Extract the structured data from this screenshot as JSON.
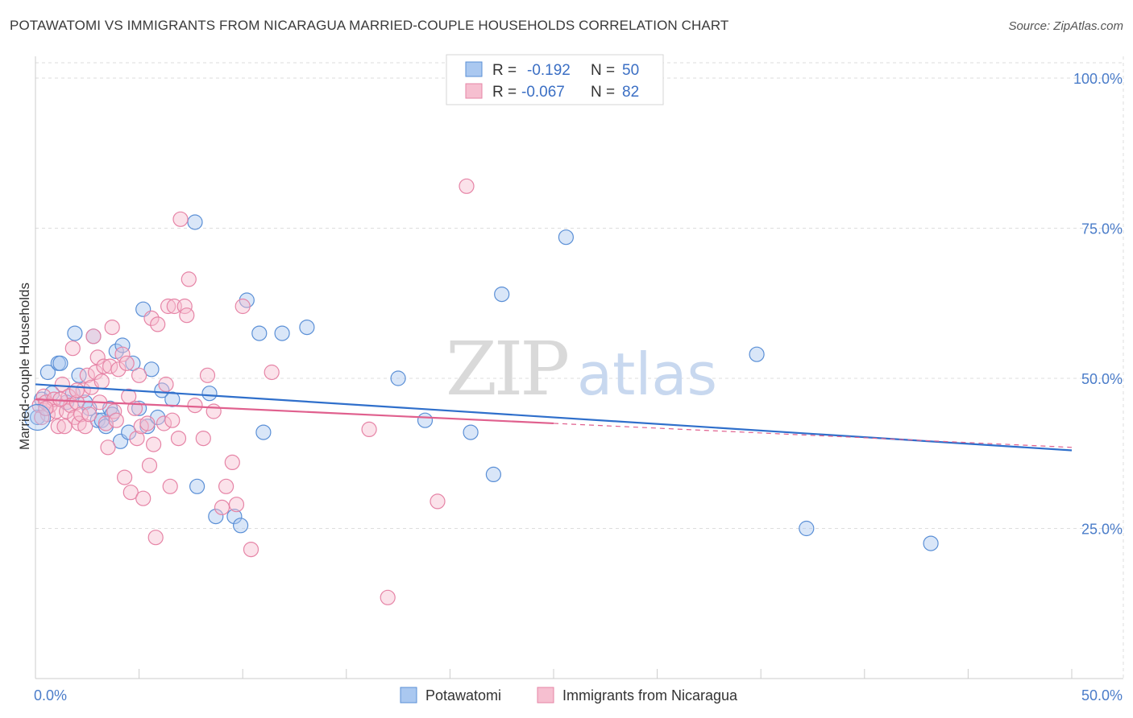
{
  "title": "POTAWATOMI VS IMMIGRANTS FROM NICARAGUA MARRIED-COUPLE HOUSEHOLDS CORRELATION CHART",
  "source": "Source: ZipAtlas.com",
  "watermark": {
    "zip": "ZIP",
    "atlas": "atlas"
  },
  "colors": {
    "blue_fill": "#aac8f0",
    "blue_stroke": "#5a8fd6",
    "blue_line": "#2f6fcb",
    "pink_fill": "#f6bfd0",
    "pink_stroke": "#e684a6",
    "pink_line": "#e0608e",
    "grid": "#dddddd",
    "tick_text": "#4a7cc9"
  },
  "legend": {
    "rows": [
      {
        "r_label": "R =",
        "r_value": "-0.192",
        "n_label": "N =",
        "n_value": "50",
        "series": "blue"
      },
      {
        "r_label": "R =",
        "r_value": "-0.067",
        "n_label": "N =",
        "n_value": "82",
        "series": "pink"
      }
    ]
  },
  "chart_data": {
    "type": "scatter",
    "xlabel": "",
    "ylabel": "Married-couple Households",
    "xlim": [
      0,
      50
    ],
    "ylim": [
      0,
      105
    ],
    "x_tick_labels": [
      "0.0%",
      "50.0%"
    ],
    "y_ticks": [
      25,
      50,
      75,
      100
    ],
    "y_tick_labels": [
      "25.0%",
      "50.0%",
      "75.0%",
      "100.0%"
    ],
    "grid": true,
    "legend_position": "top-center",
    "series": [
      {
        "name": "Potawatomi",
        "color": "blue",
        "trend": {
          "x": [
            0,
            50
          ],
          "y": [
            49.0,
            38.0
          ],
          "dashed_from": null
        },
        "points": [
          [
            0.1,
            43.5
          ],
          [
            0.6,
            51.0
          ],
          [
            1.1,
            52.5
          ],
          [
            1.2,
            52.5
          ],
          [
            1.8,
            47.5
          ],
          [
            1.9,
            57.5
          ],
          [
            2.1,
            50.5
          ],
          [
            2.4,
            46.0
          ],
          [
            2.8,
            57.0
          ],
          [
            3.0,
            43.0
          ],
          [
            3.2,
            43.0
          ],
          [
            3.4,
            42.0
          ],
          [
            3.6,
            45.0
          ],
          [
            3.9,
            54.5
          ],
          [
            4.2,
            55.5
          ],
          [
            4.1,
            39.5
          ],
          [
            4.5,
            41.0
          ],
          [
            4.7,
            52.5
          ],
          [
            5.0,
            45.0
          ],
          [
            5.2,
            61.5
          ],
          [
            5.4,
            42.0
          ],
          [
            5.6,
            51.5
          ],
          [
            5.9,
            43.5
          ],
          [
            6.1,
            48.0
          ],
          [
            6.6,
            46.5
          ],
          [
            7.7,
            76.0
          ],
          [
            7.8,
            32.0
          ],
          [
            8.4,
            47.5
          ],
          [
            8.7,
            27.0
          ],
          [
            9.6,
            27.0
          ],
          [
            9.9,
            25.5
          ],
          [
            10.2,
            63.0
          ],
          [
            10.8,
            57.5
          ],
          [
            11.0,
            41.0
          ],
          [
            11.9,
            57.5
          ],
          [
            13.1,
            58.5
          ],
          [
            17.5,
            50.0
          ],
          [
            18.8,
            43.0
          ],
          [
            21.0,
            41.0
          ],
          [
            22.1,
            34.0
          ],
          [
            22.5,
            64.0
          ],
          [
            25.6,
            73.5
          ],
          [
            34.8,
            54.0
          ],
          [
            37.2,
            25.0
          ],
          [
            43.2,
            22.5
          ],
          [
            0.3,
            46.5
          ],
          [
            0.8,
            47.5
          ],
          [
            1.5,
            46.0
          ],
          [
            2.6,
            45.0
          ],
          [
            3.7,
            44.0
          ]
        ]
      },
      {
        "name": "Immigrants from Nicaragua",
        "color": "pink",
        "trend": {
          "x": [
            0,
            25
          ],
          "y": [
            46.5,
            42.5
          ],
          "dashed_from": 25,
          "dashed_to": [
            50,
            38.5
          ]
        },
        "points": [
          [
            0.2,
            45.5
          ],
          [
            0.4,
            47.0
          ],
          [
            0.5,
            46.0
          ],
          [
            0.6,
            44.0
          ],
          [
            0.7,
            45.5
          ],
          [
            0.9,
            46.5
          ],
          [
            1.0,
            44.5
          ],
          [
            1.1,
            42.0
          ],
          [
            1.3,
            49.0
          ],
          [
            1.4,
            42.0
          ],
          [
            1.5,
            44.5
          ],
          [
            1.6,
            47.0
          ],
          [
            1.7,
            45.5
          ],
          [
            1.8,
            55.0
          ],
          [
            1.9,
            43.5
          ],
          [
            2.0,
            46.0
          ],
          [
            2.1,
            42.5
          ],
          [
            2.2,
            44.0
          ],
          [
            2.3,
            48.0
          ],
          [
            2.4,
            42.0
          ],
          [
            2.5,
            50.5
          ],
          [
            2.6,
            44.0
          ],
          [
            2.7,
            48.5
          ],
          [
            2.8,
            57.0
          ],
          [
            2.9,
            51.0
          ],
          [
            3.0,
            53.5
          ],
          [
            3.1,
            46.0
          ],
          [
            3.2,
            49.5
          ],
          [
            3.3,
            52.0
          ],
          [
            3.4,
            42.5
          ],
          [
            3.5,
            38.5
          ],
          [
            3.6,
            52.0
          ],
          [
            3.7,
            58.5
          ],
          [
            3.8,
            44.5
          ],
          [
            3.9,
            43.0
          ],
          [
            4.0,
            51.5
          ],
          [
            4.2,
            54.0
          ],
          [
            4.3,
            33.5
          ],
          [
            4.4,
            52.5
          ],
          [
            4.5,
            47.0
          ],
          [
            4.6,
            31.0
          ],
          [
            4.8,
            45.0
          ],
          [
            4.9,
            40.0
          ],
          [
            5.0,
            50.5
          ],
          [
            5.1,
            42.0
          ],
          [
            5.2,
            30.0
          ],
          [
            5.4,
            42.5
          ],
          [
            5.5,
            35.5
          ],
          [
            5.6,
            60.0
          ],
          [
            5.7,
            39.0
          ],
          [
            5.8,
            23.5
          ],
          [
            5.9,
            59.0
          ],
          [
            6.2,
            42.5
          ],
          [
            6.3,
            49.0
          ],
          [
            6.4,
            62.0
          ],
          [
            6.5,
            32.0
          ],
          [
            6.6,
            43.0
          ],
          [
            6.7,
            62.0
          ],
          [
            6.9,
            40.0
          ],
          [
            7.0,
            76.5
          ],
          [
            7.2,
            62.0
          ],
          [
            7.3,
            60.5
          ],
          [
            7.4,
            66.5
          ],
          [
            7.7,
            45.5
          ],
          [
            8.1,
            40.0
          ],
          [
            8.3,
            50.5
          ],
          [
            8.6,
            44.5
          ],
          [
            9.0,
            28.5
          ],
          [
            9.2,
            32.0
          ],
          [
            9.5,
            36.0
          ],
          [
            9.7,
            29.0
          ],
          [
            10.0,
            62.0
          ],
          [
            10.4,
            21.5
          ],
          [
            11.4,
            51.0
          ],
          [
            16.1,
            41.5
          ],
          [
            17.0,
            13.5
          ],
          [
            19.4,
            29.5
          ],
          [
            20.8,
            82.0
          ],
          [
            0.3,
            43.5
          ],
          [
            0.5,
            45.0
          ],
          [
            1.2,
            46.5
          ],
          [
            2.0,
            48.0
          ]
        ]
      }
    ]
  },
  "bottom_legend": [
    {
      "label": "Potawatomi",
      "color": "blue"
    },
    {
      "label": "Immigrants from Nicaragua",
      "color": "pink"
    }
  ]
}
